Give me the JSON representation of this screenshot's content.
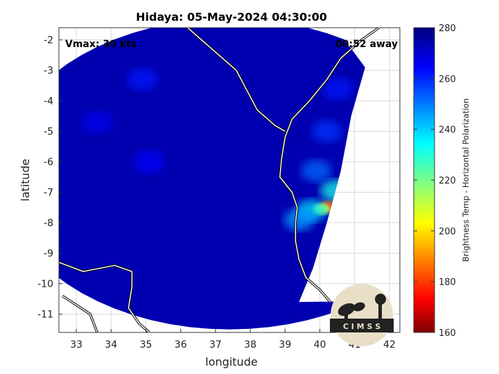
{
  "chart_data": {
    "type": "heatmap",
    "title": "Hidaya: 05-May-2024 04:30:00",
    "xlabel": "longitude",
    "ylabel": "latitude",
    "xlim": [
      32.5,
      42.3
    ],
    "ylim": [
      -11.6,
      -1.6
    ],
    "xticks": [
      33,
      34,
      35,
      36,
      37,
      38,
      39,
      40,
      41,
      42
    ],
    "yticks": [
      -2,
      -3,
      -4,
      -5,
      -6,
      -7,
      -8,
      -9,
      -10,
      -11
    ],
    "grid": true,
    "annotations": {
      "vmax": "Vmax: 30 kts",
      "time_away": "00:52 away"
    },
    "colorbar": {
      "label": "Brightness Temp - Horizontal Polarization",
      "range": [
        160,
        280
      ],
      "ticks": [
        280,
        260,
        240,
        220,
        200,
        180,
        160
      ],
      "colormap": "jet"
    },
    "background_value": 274,
    "swath": {
      "center": [
        37.4,
        -6.4
      ],
      "radius_lon": 6.6,
      "radius_lat": 5.1,
      "east_edge_lon": [
        [
          -2.9,
          41.3
        ],
        [
          -4.5,
          40.9
        ],
        [
          -6.3,
          40.6
        ],
        [
          -8.0,
          40.2
        ],
        [
          -9.5,
          39.8
        ],
        [
          -10.6,
          39.4
        ]
      ]
    },
    "features": [
      {
        "lon": 40.25,
        "lat": -7.45,
        "value": 178
      },
      {
        "lon": 40.05,
        "lat": -7.55,
        "value": 212
      },
      {
        "lon": 39.75,
        "lat": -7.6,
        "value": 238
      },
      {
        "lon": 40.45,
        "lat": -6.95,
        "value": 232
      },
      {
        "lon": 39.4,
        "lat": -7.9,
        "value": 246
      },
      {
        "lon": 39.9,
        "lat": -6.3,
        "value": 252
      },
      {
        "lon": 40.2,
        "lat": -5.0,
        "value": 258
      },
      {
        "lon": 40.5,
        "lat": -3.6,
        "value": 262
      },
      {
        "lon": 34.9,
        "lat": -3.3,
        "value": 262
      },
      {
        "lon": 35.1,
        "lat": -6.0,
        "value": 264
      },
      {
        "lon": 33.6,
        "lat": -4.7,
        "value": 266
      }
    ],
    "branding": "C I M S S"
  }
}
